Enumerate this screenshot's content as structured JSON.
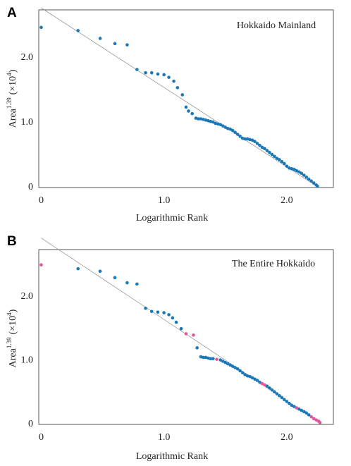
{
  "colors": {
    "mainland_point": "#1a78b8",
    "island_point": "#e2559f",
    "fit_line": "#9a9a9a",
    "frame": "#555555"
  },
  "chart_data": [
    {
      "type": "scatter",
      "panel_label": "A",
      "title": "Hokkaido Mainland",
      "xlabel": "Logarithmic Rank",
      "ylabel": "Area",
      "ylabel_exponent": "1.39",
      "ylabel_unit": "(×10",
      "ylabel_unit_exponent": "4",
      "ylabel_unit_close": ")",
      "xlim": [
        -0.02,
        2.38
      ],
      "ylim": [
        -0.02,
        2.72
      ],
      "x_ticks": [
        {
          "value": 0,
          "label": "0"
        },
        {
          "value": 1.0,
          "label": "1.0"
        },
        {
          "value": 2.0,
          "label": "2.0"
        }
      ],
      "y_ticks": [
        {
          "value": 0,
          "label": "0"
        },
        {
          "value": 1.0,
          "label": "1.0"
        },
        {
          "value": 2.0,
          "label": "2.0"
        }
      ],
      "fit_line": {
        "x": [
          0,
          2.26
        ],
        "y": [
          2.75,
          -0.02
        ]
      },
      "series": [
        {
          "points": [
            [
              0.0,
              2.45
            ],
            [
              0.3,
              2.4
            ],
            [
              0.48,
              2.28
            ],
            [
              0.6,
              2.2
            ],
            [
              0.7,
              2.18
            ],
            [
              0.78,
              1.8
            ],
            [
              0.85,
              1.75
            ],
            [
              0.9,
              1.75
            ],
            [
              0.95,
              1.73
            ],
            [
              1.0,
              1.72
            ],
            [
              1.04,
              1.68
            ],
            [
              1.08,
              1.62
            ],
            [
              1.11,
              1.52
            ],
            [
              1.15,
              1.41
            ],
            [
              1.18,
              1.22
            ],
            [
              1.2,
              1.16
            ],
            [
              1.23,
              1.12
            ],
            [
              1.26,
              1.05
            ],
            [
              1.28,
              1.04
            ],
            [
              1.3,
              1.04
            ],
            [
              1.32,
              1.03
            ],
            [
              1.34,
              1.02
            ],
            [
              1.36,
              1.01
            ],
            [
              1.38,
              1.0
            ],
            [
              1.4,
              0.99
            ],
            [
              1.42,
              0.97
            ],
            [
              1.44,
              0.96
            ],
            [
              1.46,
              0.95
            ],
            [
              1.48,
              0.93
            ],
            [
              1.5,
              0.91
            ],
            [
              1.52,
              0.89
            ],
            [
              1.54,
              0.88
            ],
            [
              1.56,
              0.86
            ],
            [
              1.58,
              0.83
            ],
            [
              1.6,
              0.8
            ],
            [
              1.62,
              0.77
            ],
            [
              1.64,
              0.74
            ],
            [
              1.66,
              0.73
            ],
            [
              1.68,
              0.73
            ],
            [
              1.7,
              0.72
            ],
            [
              1.72,
              0.71
            ],
            [
              1.74,
              0.69
            ],
            [
              1.76,
              0.66
            ],
            [
              1.78,
              0.63
            ],
            [
              1.8,
              0.6
            ],
            [
              1.82,
              0.58
            ],
            [
              1.84,
              0.55
            ],
            [
              1.86,
              0.52
            ],
            [
              1.88,
              0.49
            ],
            [
              1.9,
              0.46
            ],
            [
              1.92,
              0.43
            ],
            [
              1.94,
              0.41
            ],
            [
              1.96,
              0.38
            ],
            [
              1.98,
              0.35
            ],
            [
              2.0,
              0.31
            ],
            [
              2.02,
              0.28
            ],
            [
              2.04,
              0.27
            ],
            [
              2.06,
              0.26
            ],
            [
              2.08,
              0.24
            ],
            [
              2.1,
              0.22
            ],
            [
              2.12,
              0.2
            ],
            [
              2.14,
              0.17
            ],
            [
              2.16,
              0.14
            ],
            [
              2.18,
              0.11
            ],
            [
              2.2,
              0.08
            ],
            [
              2.22,
              0.05
            ],
            [
              2.24,
              0.02
            ],
            [
              2.25,
              0.0
            ]
          ]
        }
      ]
    },
    {
      "type": "scatter",
      "panel_label": "B",
      "title": "The Entire Hokkaido",
      "xlabel": "Logarithmic Rank",
      "ylabel": "Area",
      "ylabel_exponent": "1.39",
      "ylabel_unit": "(×10",
      "ylabel_unit_exponent": "4",
      "ylabel_unit_close": ")",
      "xlim": [
        -0.02,
        2.38
      ],
      "ylim": [
        -0.02,
        2.72
      ],
      "x_ticks": [
        {
          "value": 0,
          "label": "0"
        },
        {
          "value": 1.0,
          "label": "1.0"
        },
        {
          "value": 2.0,
          "label": "2.0"
        }
      ],
      "y_ticks": [
        {
          "value": 0,
          "label": "0"
        },
        {
          "value": 1.0,
          "label": "1.0"
        },
        {
          "value": 2.0,
          "label": "2.0"
        }
      ],
      "fit_line": {
        "x": [
          0,
          2.29
        ],
        "y": [
          2.9,
          -0.02
        ]
      },
      "series": [
        {
          "points": [
            [
              0.3,
              2.42
            ],
            [
              0.48,
              2.38
            ],
            [
              0.6,
              2.28
            ],
            [
              0.7,
              2.2
            ],
            [
              0.78,
              2.18
            ],
            [
              0.85,
              1.8
            ],
            [
              0.9,
              1.75
            ],
            [
              0.95,
              1.74
            ],
            [
              1.0,
              1.73
            ],
            [
              1.04,
              1.7
            ],
            [
              1.07,
              1.65
            ],
            [
              1.1,
              1.58
            ],
            [
              1.14,
              1.48
            ],
            [
              1.27,
              1.18
            ],
            [
              1.3,
              1.04
            ],
            [
              1.32,
              1.03
            ],
            [
              1.34,
              1.03
            ],
            [
              1.36,
              1.02
            ],
            [
              1.38,
              1.01
            ],
            [
              1.4,
              1.01
            ],
            [
              1.46,
              0.99
            ],
            [
              1.48,
              0.97
            ],
            [
              1.5,
              0.95
            ],
            [
              1.52,
              0.93
            ],
            [
              1.54,
              0.91
            ],
            [
              1.56,
              0.89
            ],
            [
              1.58,
              0.87
            ],
            [
              1.6,
              0.85
            ],
            [
              1.62,
              0.82
            ],
            [
              1.64,
              0.79
            ],
            [
              1.66,
              0.76
            ],
            [
              1.68,
              0.74
            ],
            [
              1.7,
              0.73
            ],
            [
              1.72,
              0.71
            ],
            [
              1.74,
              0.69
            ],
            [
              1.76,
              0.67
            ],
            [
              1.78,
              0.64
            ],
            [
              1.84,
              0.58
            ],
            [
              1.86,
              0.55
            ],
            [
              1.88,
              0.52
            ],
            [
              1.9,
              0.49
            ],
            [
              1.92,
              0.46
            ],
            [
              1.94,
              0.43
            ],
            [
              1.96,
              0.4
            ],
            [
              1.98,
              0.37
            ],
            [
              2.0,
              0.34
            ],
            [
              2.02,
              0.31
            ],
            [
              2.04,
              0.28
            ],
            [
              2.06,
              0.26
            ],
            [
              2.1,
              0.22
            ],
            [
              2.12,
              0.2
            ],
            [
              2.14,
              0.18
            ],
            [
              2.16,
              0.16
            ],
            [
              2.18,
              0.13
            ]
          ]
        },
        {
          "points": [
            [
              0.0,
              2.48
            ],
            [
              1.18,
              1.4
            ],
            [
              1.24,
              1.38
            ],
            [
              1.43,
              1.0
            ],
            [
              1.8,
              0.62
            ],
            [
              1.82,
              0.6
            ],
            [
              2.08,
              0.24
            ],
            [
              2.2,
              0.1
            ],
            [
              2.22,
              0.07
            ],
            [
              2.24,
              0.05
            ],
            [
              2.26,
              0.03
            ],
            [
              2.27,
              0.01
            ]
          ]
        }
      ]
    }
  ]
}
